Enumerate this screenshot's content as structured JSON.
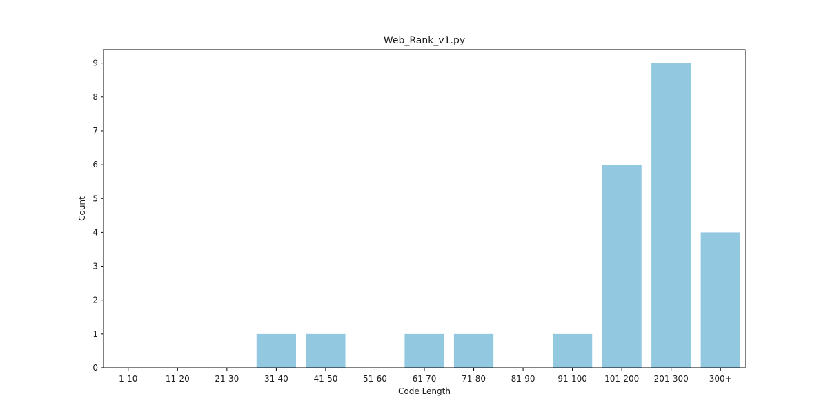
{
  "chart_data": {
    "type": "bar",
    "title": "Web_Rank_v1.py",
    "xlabel": "Code Length",
    "ylabel": "Count",
    "categories": [
      "1-10",
      "11-20",
      "21-30",
      "31-40",
      "41-50",
      "51-60",
      "61-70",
      "71-80",
      "81-90",
      "91-100",
      "101-200",
      "201-300",
      "300+"
    ],
    "values": [
      0,
      0,
      0,
      1,
      1,
      0,
      1,
      1,
      0,
      1,
      6,
      9,
      4
    ],
    "ylim": [
      0,
      9.4
    ],
    "yticks": [
      "0",
      "1",
      "2",
      "3",
      "4",
      "5",
      "6",
      "7",
      "8",
      "9"
    ],
    "grid": false,
    "legend": "none",
    "bar_color": "#92c9e0"
  }
}
